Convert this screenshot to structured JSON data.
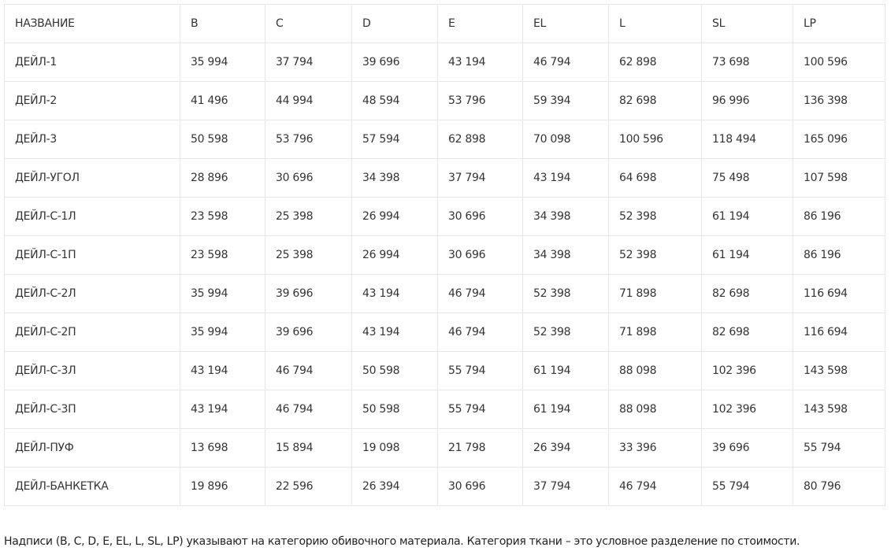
{
  "table": {
    "header": [
      "НАЗВАНИЕ",
      "B",
      "C",
      "D",
      "E",
      "EL",
      "L",
      "SL",
      "LP"
    ],
    "rows": [
      [
        "ДЕЙЛ-1",
        "35 994",
        "37 794",
        "39 696",
        "43 194",
        "46 794",
        "62 898",
        "73 698",
        "100 596"
      ],
      [
        "ДЕЙЛ-2",
        "41 496",
        "44 994",
        "48 594",
        "53 796",
        "59 394",
        "82 698",
        "96 996",
        "136 398"
      ],
      [
        "ДЕЙЛ-3",
        "50 598",
        "53 796",
        "57 594",
        "62 898",
        "70 098",
        "100 596",
        "118 494",
        "165 096"
      ],
      [
        "ДЕЙЛ-УГОЛ",
        "28 896",
        "30 696",
        "34 398",
        "37 794",
        "43 194",
        "64 698",
        "75 498",
        "107 598"
      ],
      [
        "ДЕЙЛ-С-1Л",
        "23 598",
        "25 398",
        "26 994",
        "30 696",
        "34 398",
        "52 398",
        "61 194",
        "86 196"
      ],
      [
        "ДЕЙЛ-С-1П",
        "23 598",
        "25 398",
        "26 994",
        "30 696",
        "34 398",
        "52 398",
        "61 194",
        "86 196"
      ],
      [
        "ДЕЙЛ-С-2Л",
        "35 994",
        "39 696",
        "43 194",
        "46 794",
        "52 398",
        "71 898",
        "82 698",
        "116 694"
      ],
      [
        "ДЕЙЛ-С-2П",
        "35 994",
        "39 696",
        "43 194",
        "46 794",
        "52 398",
        "71 898",
        "82 698",
        "116 694"
      ],
      [
        "ДЕЙЛ-С-3Л",
        "43 194",
        "46 794",
        "50 598",
        "55 794",
        "61 194",
        "88 098",
        "102 396",
        "143 598"
      ],
      [
        "ДЕЙЛ-С-3П",
        "43 194",
        "46 794",
        "50 598",
        "55 794",
        "61 194",
        "88 098",
        "102 396",
        "143 598"
      ],
      [
        "ДЕЙЛ-ПУФ",
        "13 698",
        "15 894",
        "19 098",
        "21 798",
        "26 394",
        "33 396",
        "39 696",
        "55 794"
      ],
      [
        "ДЕЙЛ-БАНКЕТКА",
        "19 896",
        "22 596",
        "26 394",
        "30 696",
        "37 794",
        "46 794",
        "55 794",
        "80 796"
      ]
    ]
  },
  "footnote": "Надписи (B, C, D, E, EL, L, SL, LP) указывают на категорию обивочного материала. Категория ткани – это условное разделение по стоимости."
}
